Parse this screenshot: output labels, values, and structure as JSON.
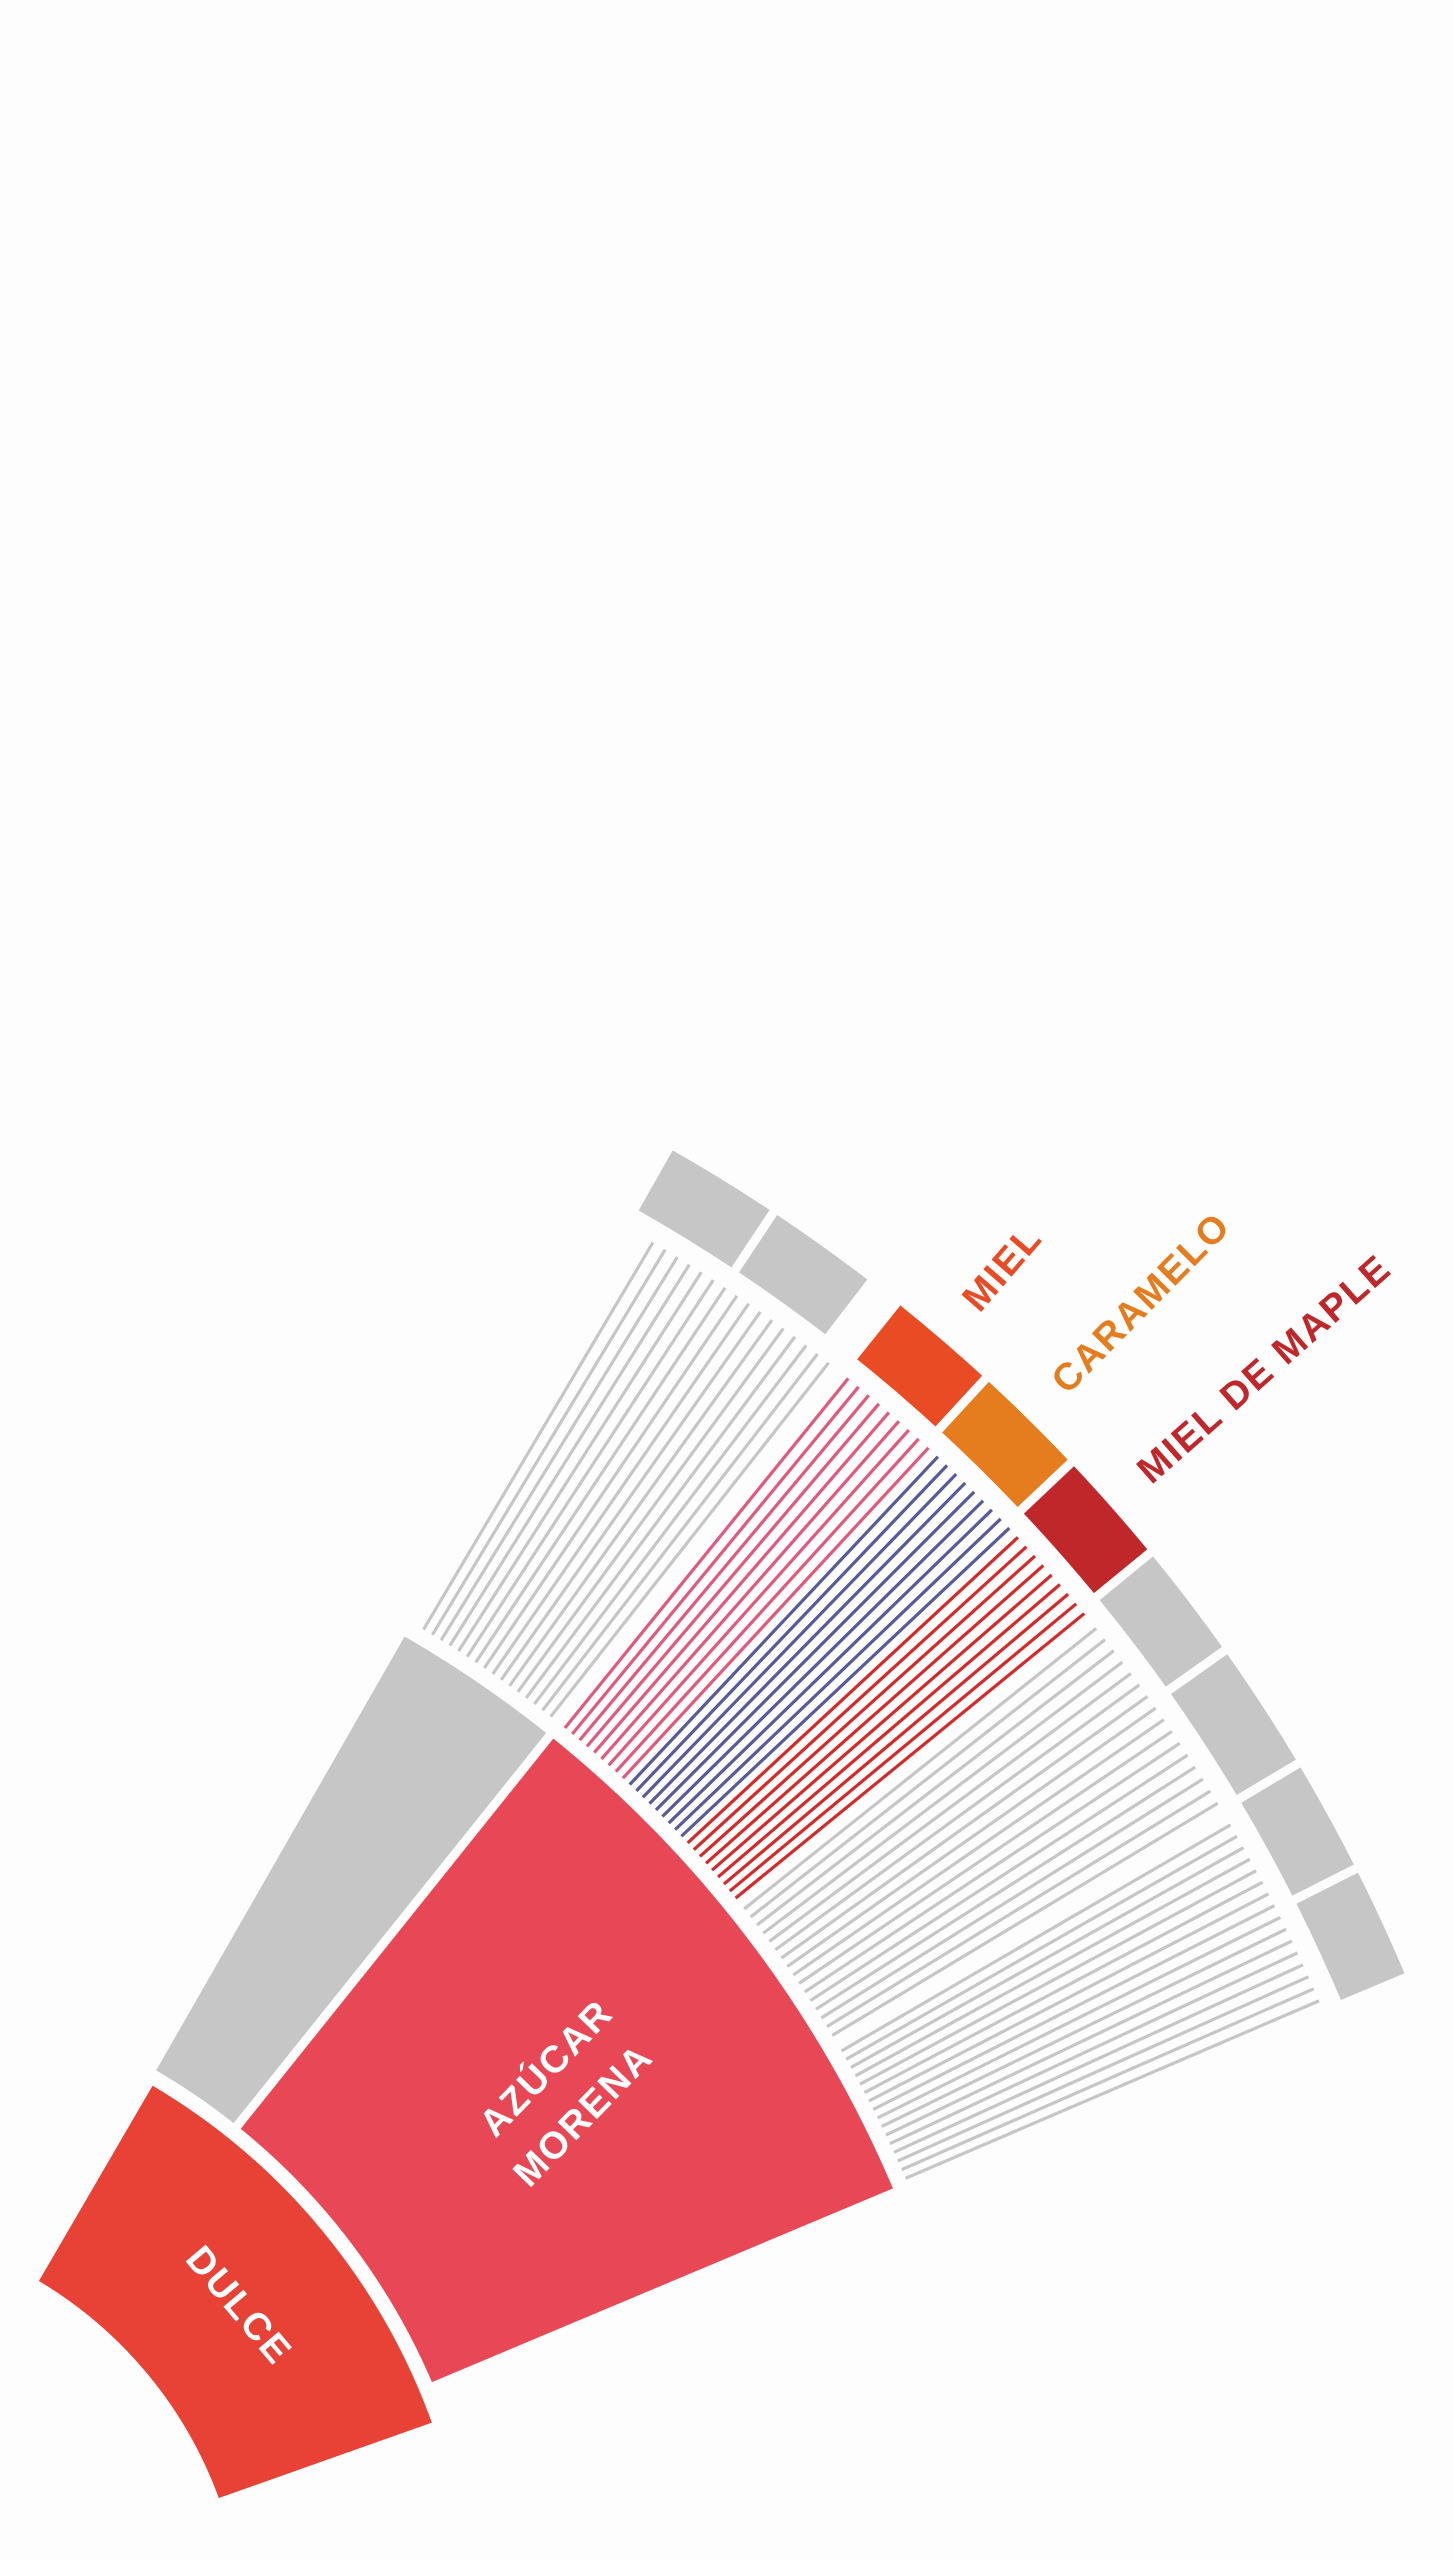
{
  "labels": {
    "dulce": "DULCE",
    "azucar_morena": [
      "AZÚCAR",
      "MORENA"
    ],
    "miel": "MIEL",
    "caramelo": "CARAMELO",
    "miel_de_maple": "MIEL DE MAPLE"
  }
}
